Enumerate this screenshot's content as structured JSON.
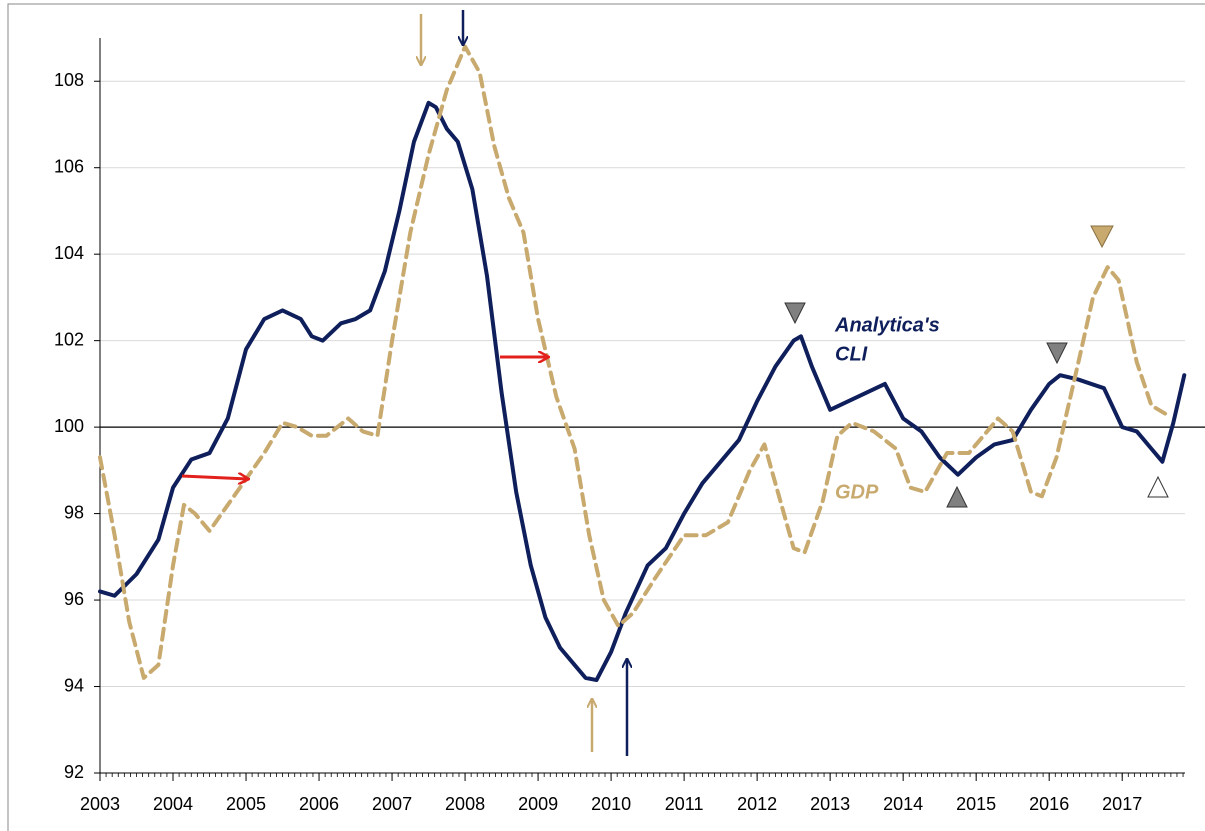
{
  "chart_data": {
    "type": "line",
    "annotations": {
      "cli_line1": "Analytica's",
      "cli_line2": "CLI",
      "gdp": "GDP"
    },
    "xlim": [
      2003,
      2017.86
    ],
    "xticks": [
      2003,
      2004,
      2005,
      2006,
      2007,
      2008,
      2009,
      2010,
      2011,
      2012,
      2013,
      2014,
      2015,
      2016,
      2017
    ],
    "ylim": [
      92,
      109
    ],
    "yticks": [
      92,
      94,
      96,
      98,
      100,
      102,
      104,
      106,
      108
    ],
    "grid": true,
    "reference_line": 100,
    "series": [
      {
        "name": "Analytica's CLI",
        "color": "#0f1f5c",
        "dashed": false,
        "x": [
          2003.0,
          2003.2,
          2003.5,
          2003.8,
          2004.0,
          2004.25,
          2004.5,
          2004.75,
          2005.0,
          2005.25,
          2005.5,
          2005.75,
          2005.9,
          2006.05,
          2006.3,
          2006.5,
          2006.7,
          2006.9,
          2007.1,
          2007.3,
          2007.5,
          2007.6,
          2007.75,
          2007.9,
          2008.1,
          2008.3,
          2008.5,
          2008.7,
          2008.9,
          2009.1,
          2009.3,
          2009.5,
          2009.65,
          2009.8,
          2010.0,
          2010.2,
          2010.5,
          2010.75,
          2011.0,
          2011.25,
          2011.5,
          2011.75,
          2012.0,
          2012.25,
          2012.5,
          2012.6,
          2012.75,
          2013.0,
          2013.25,
          2013.5,
          2013.75,
          2014.0,
          2014.25,
          2014.5,
          2014.75,
          2015.0,
          2015.25,
          2015.5,
          2015.75,
          2016.0,
          2016.15,
          2016.4,
          2016.75,
          2017.0,
          2017.2,
          2017.4,
          2017.55,
          2017.7,
          2017.85
        ],
        "values": [
          96.2,
          96.1,
          96.6,
          97.4,
          98.6,
          99.25,
          99.4,
          100.2,
          101.8,
          102.5,
          102.7,
          102.5,
          102.1,
          102.0,
          102.4,
          102.5,
          102.7,
          103.6,
          105.0,
          106.6,
          107.5,
          107.4,
          106.9,
          106.6,
          105.5,
          103.5,
          100.8,
          98.5,
          96.8,
          95.6,
          94.9,
          94.5,
          94.2,
          94.15,
          94.8,
          95.7,
          96.8,
          97.2,
          98.0,
          98.7,
          99.2,
          99.7,
          100.6,
          101.4,
          102.0,
          102.1,
          101.4,
          100.4,
          100.6,
          100.8,
          101.0,
          100.2,
          99.9,
          99.3,
          98.9,
          99.3,
          99.6,
          99.7,
          100.4,
          101.0,
          101.2,
          101.1,
          100.9,
          100.0,
          99.9,
          99.5,
          99.2,
          100.1,
          101.2
        ]
      },
      {
        "name": "GDP",
        "color": "#c8a96e",
        "dashed": true,
        "x": [
          2003.0,
          2003.2,
          2003.4,
          2003.6,
          2003.8,
          2004.0,
          2004.15,
          2004.3,
          2004.5,
          2004.75,
          2005.0,
          2005.25,
          2005.5,
          2005.7,
          2005.9,
          2006.1,
          2006.4,
          2006.6,
          2006.8,
          2007.0,
          2007.25,
          2007.5,
          2007.75,
          2008.0,
          2008.2,
          2008.4,
          2008.6,
          2008.8,
          2009.0,
          2009.25,
          2009.5,
          2009.7,
          2009.9,
          2010.1,
          2010.3,
          2010.6,
          2011.0,
          2011.3,
          2011.6,
          2011.9,
          2012.1,
          2012.3,
          2012.5,
          2012.65,
          2012.9,
          2013.1,
          2013.3,
          2013.6,
          2013.9,
          2014.1,
          2014.3,
          2014.6,
          2014.9,
          2015.1,
          2015.3,
          2015.5,
          2015.75,
          2015.9,
          2016.1,
          2016.4,
          2016.6,
          2016.8,
          2016.95,
          2017.2,
          2017.4,
          2017.6
        ],
        "values": [
          99.3,
          97.5,
          95.5,
          94.2,
          94.5,
          96.8,
          98.2,
          98.0,
          97.6,
          98.2,
          98.8,
          99.4,
          100.1,
          100.0,
          99.8,
          99.8,
          100.2,
          99.9,
          99.8,
          102.0,
          104.5,
          106.3,
          107.8,
          108.8,
          108.2,
          106.5,
          105.3,
          104.5,
          102.5,
          100.7,
          99.5,
          97.5,
          96.0,
          95.4,
          95.7,
          96.5,
          97.5,
          97.5,
          97.8,
          99.0,
          99.6,
          98.4,
          97.2,
          97.1,
          98.3,
          99.8,
          100.1,
          99.9,
          99.5,
          98.6,
          98.5,
          99.4,
          99.4,
          99.8,
          100.2,
          99.9,
          98.5,
          98.4,
          99.3,
          101.5,
          103.0,
          103.7,
          103.4,
          101.5,
          100.5,
          100.3
        ]
      }
    ]
  }
}
